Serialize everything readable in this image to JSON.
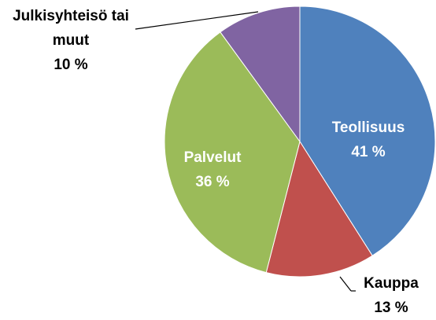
{
  "chart_data": {
    "type": "pie",
    "categories": [
      "Teollisuus",
      "Kauppa",
      "Palvelut",
      "Julkisyhteisö tai muut"
    ],
    "values": [
      41,
      13,
      36,
      10
    ],
    "value_labels": [
      "41 %",
      "13 %",
      "36 %",
      "10 %"
    ],
    "colors": [
      "#4f81bd",
      "#c0504d",
      "#9bbb59",
      "#8064a2"
    ]
  }
}
